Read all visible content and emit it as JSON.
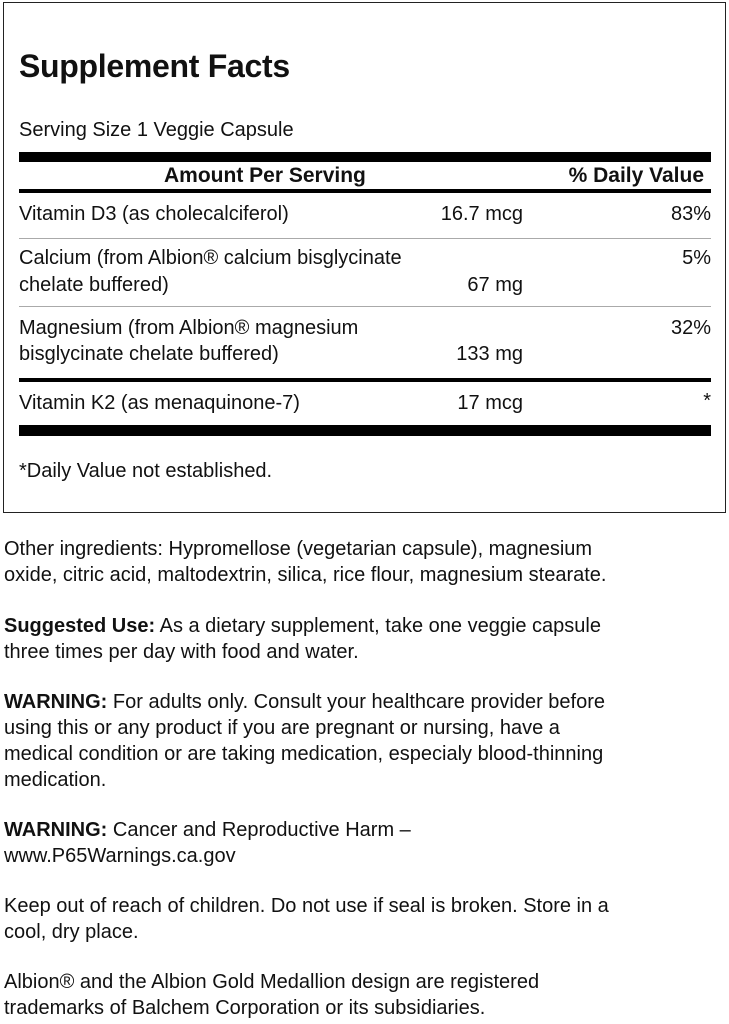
{
  "facts": {
    "title": "Supplement Facts",
    "serving_size": "Serving Size 1 Veggie Capsule",
    "header_amount": "Amount Per Serving",
    "header_dv": "% Daily Value",
    "rows": [
      {
        "lines": [
          "Vitamin D3 (as cholecalciferol)"
        ],
        "amount": "16.7 mcg",
        "dv": "83%"
      },
      {
        "lines": [
          "Calcium (from Albion® calcium bisglycinate",
          "chelate buffered)"
        ],
        "amount": "67 mg",
        "dv": "5%"
      },
      {
        "lines": [
          "Magnesium (from Albion® magnesium",
          "bisglycinate chelate buffered)"
        ],
        "amount": "133 mg",
        "dv": "32%"
      },
      {
        "lines": [
          "Vitamin K2 (as menaquinone-7)"
        ],
        "amount": "17 mcg",
        "dv": "*"
      }
    ],
    "footnote": "*Daily Value not established."
  },
  "paragraphs": [
    {
      "label": "",
      "lines": [
        "Other ingredients: Hypromellose (vegetarian capsule), magnesium",
        "oxide, citric acid, maltodextrin, silica, rice flour, magnesium stearate."
      ]
    },
    {
      "label": "Suggested Use:",
      "lines": [
        " As a dietary supplement, take one veggie capsule",
        "three times per day with food and water."
      ]
    },
    {
      "label": "WARNING:",
      "lines": [
        " For adults only. Consult your healthcare provider before",
        "using this or any product if you are pregnant or nursing, have a",
        "medical condition or are taking medication, especialy blood-thinning",
        "medication."
      ]
    },
    {
      "label": "WARNING:",
      "lines": [
        " Cancer and Reproductive Harm –",
        "www.P65Warnings.ca.gov"
      ]
    },
    {
      "label": "",
      "lines": [
        "Keep out of reach of children. Do not use if seal is broken. Store in a",
        "cool, dry place."
      ]
    },
    {
      "label": "",
      "lines": [
        "Albion® and the Albion Gold Medallion design are registered",
        "trademarks of Balchem Corporation or its subsidiaries."
      ]
    }
  ]
}
